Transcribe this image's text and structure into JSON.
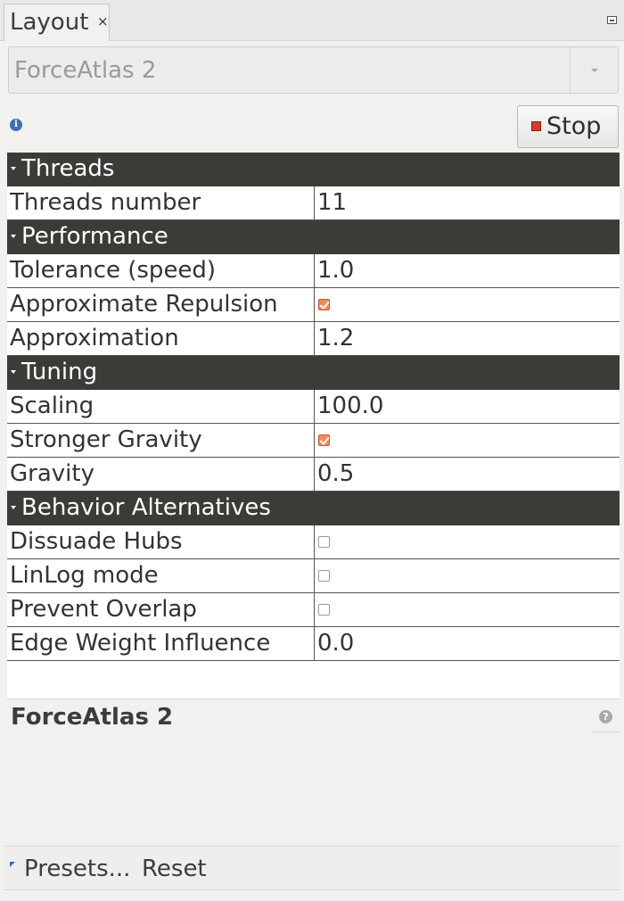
{
  "tab": {
    "title": "Layout",
    "close": "×"
  },
  "algorithm": {
    "selected": "ForceAtlas 2"
  },
  "run_button": {
    "label": "Stop"
  },
  "properties": {
    "threads": {
      "label": "Threads",
      "threads_number": {
        "name": "Threads number",
        "value": "11"
      }
    },
    "performance": {
      "label": "Performance",
      "tolerance": {
        "name": "Tolerance (speed)",
        "value": "1.0"
      },
      "approximate_repulsion": {
        "name": "Approximate Repulsion",
        "checked": true
      },
      "approximation": {
        "name": "Approximation",
        "value": "1.2"
      }
    },
    "tuning": {
      "label": "Tuning",
      "scaling": {
        "name": "Scaling",
        "value": "100.0"
      },
      "stronger_gravity": {
        "name": "Stronger Gravity",
        "checked": true
      },
      "gravity": {
        "name": "Gravity",
        "value": "0.5"
      }
    },
    "behavior": {
      "label": "Behavior Alternatives",
      "dissuade_hubs": {
        "name": "Dissuade Hubs",
        "checked": false
      },
      "linlog_mode": {
        "name": "LinLog mode",
        "checked": false
      },
      "prevent_overlap": {
        "name": "Prevent Overlap",
        "checked": false
      },
      "edge_weight_influence": {
        "name": "Edge Weight Influence",
        "value": "0.0"
      }
    }
  },
  "description": {
    "title": "ForceAtlas 2"
  },
  "footer": {
    "presets": "Presets...",
    "reset": "Reset"
  },
  "colors": {
    "category_bg": "#3c3b37",
    "checkbox_on": "#f08a5d",
    "stop_icon": "#d43b2b",
    "info_icon": "#3f6fb3"
  }
}
